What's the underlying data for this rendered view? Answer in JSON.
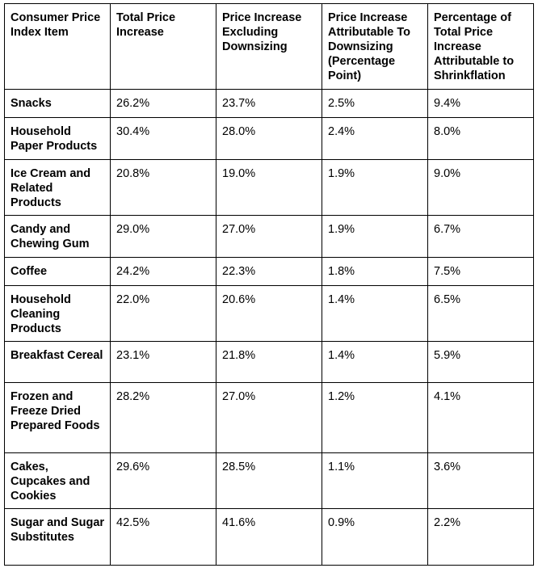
{
  "table": {
    "headers": [
      "Consumer Price Index Item",
      "Total Price Increase",
      "Price Increase Excluding Downsizing",
      "Price Increase Attributable To Downsizing (Percentage Point)",
      "Percentage of Total Price Increase Attributable to Shrinkflation"
    ],
    "rows": [
      {
        "item": "Snacks",
        "total": "26.2%",
        "excluding": "23.7%",
        "downsizing": "2.5%",
        "shrinkflation": "9.4%"
      },
      {
        "item": "Household Paper Products",
        "total": "30.4%",
        "excluding": "28.0%",
        "downsizing": "2.4%",
        "shrinkflation": "8.0%"
      },
      {
        "item": "Ice Cream and Related Products",
        "total": "20.8%",
        "excluding": "19.0%",
        "downsizing": "1.9%",
        "shrinkflation": "9.0%"
      },
      {
        "item": "Candy and Chewing Gum",
        "total": "29.0%",
        "excluding": "27.0%",
        "downsizing": "1.9%",
        "shrinkflation": "6.7%"
      },
      {
        "item": "Coffee",
        "total": "24.2%",
        "excluding": "22.3%",
        "downsizing": "1.8%",
        "shrinkflation": "7.5%"
      },
      {
        "item": "Household Cleaning Products",
        "total": "22.0%",
        "excluding": "20.6%",
        "downsizing": "1.4%",
        "shrinkflation": "6.5%"
      },
      {
        "item": "Breakfast Cereal",
        "total": "23.1%",
        "excluding": "21.8%",
        "downsizing": "1.4%",
        "shrinkflation": "5.9%"
      },
      {
        "item": "Frozen and Freeze Dried Prepared Foods",
        "total": "28.2%",
        "excluding": "27.0%",
        "downsizing": "1.2%",
        "shrinkflation": "4.1%"
      },
      {
        "item": "Cakes, Cupcakes and Cookies",
        "total": "29.6%",
        "excluding": "28.5%",
        "downsizing": "1.1%",
        "shrinkflation": "3.6%"
      },
      {
        "item": "Sugar and Sugar Substitutes",
        "total": "42.5%",
        "excluding": "41.6%",
        "downsizing": "0.9%",
        "shrinkflation": "2.2%"
      }
    ]
  }
}
